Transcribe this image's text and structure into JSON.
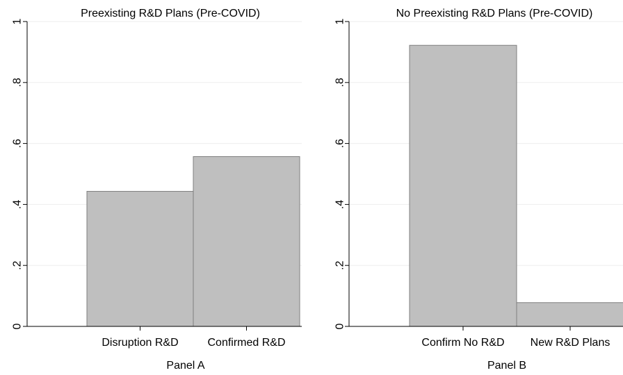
{
  "chart_data": [
    {
      "type": "bar",
      "title": "Preexisting R&D Plans (Pre-COVID)",
      "xlabel": "Panel A",
      "ylabel": "",
      "categories": [
        "Disruption R&D",
        "Confirmed R&D"
      ],
      "values": [
        0.443,
        0.557
      ],
      "ylim": [
        0,
        1
      ],
      "yticks": [
        "0",
        ".2",
        ".4",
        ".6",
        ".8",
        "1"
      ],
      "grid": true,
      "bar_color": "#bfbfbf",
      "bar_edge_color": "#7f7f7f"
    },
    {
      "type": "bar",
      "title": "No Preexisting R&D Plans (Pre-COVID)",
      "xlabel": "Panel B",
      "ylabel": "",
      "categories": [
        "Confirm No R&D",
        "New R&D Plans"
      ],
      "values": [
        0.922,
        0.078
      ],
      "ylim": [
        0,
        1
      ],
      "yticks": [
        "0",
        ".2",
        ".4",
        ".6",
        ".8",
        "1"
      ],
      "grid": true,
      "bar_color": "#bfbfbf",
      "bar_edge_color": "#7f7f7f"
    }
  ]
}
